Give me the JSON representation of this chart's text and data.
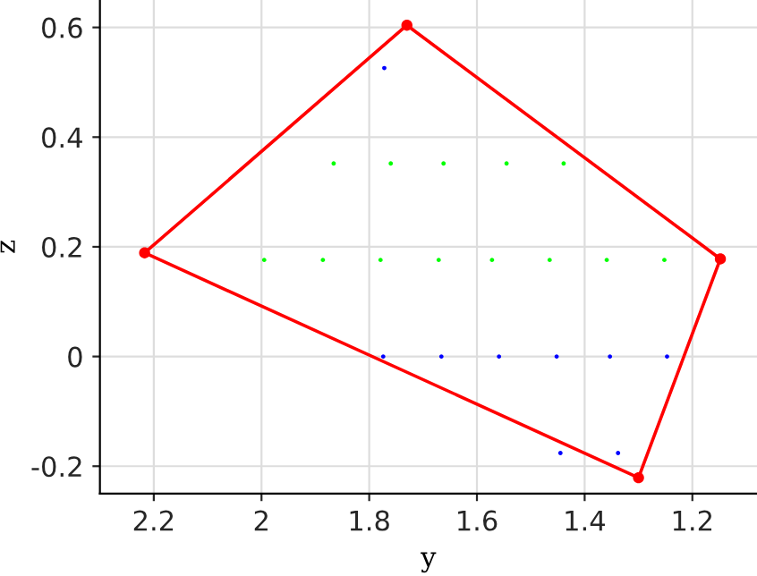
{
  "chart_data": {
    "type": "line",
    "xlabel": "y",
    "ylabel": "z",
    "xlim": [
      2.3,
      1.08
    ],
    "ylim": [
      -0.25,
      0.65
    ],
    "xticks": [
      {
        "value": 2.2,
        "label": "2.2"
      },
      {
        "value": 2.0,
        "label": "2"
      },
      {
        "value": 1.8,
        "label": "1.8"
      },
      {
        "value": 1.6,
        "label": "1.6"
      },
      {
        "value": 1.4,
        "label": "1.4"
      },
      {
        "value": 1.2,
        "label": "1.2"
      }
    ],
    "yticks": [
      {
        "value": -0.2,
        "label": "-0.2"
      },
      0,
      0.2,
      0.4,
      0.6
    ],
    "grid": true,
    "legend": false,
    "series": [
      {
        "color": "#ff0000",
        "line_style": "solid",
        "x": [
          1.148,
          1.73
        ],
        "values": [
          0.178,
          0.604
        ]
      },
      {
        "color": "#ff0000",
        "line_style": "solid",
        "x": [
          1.148,
          1.3
        ],
        "values": [
          0.178,
          -0.221
        ]
      },
      {
        "color": "#ff0000",
        "line_style": "solid",
        "x": [
          1.3,
          2.217
        ],
        "values": [
          -0.221,
          0.189
        ]
      },
      {
        "color": "#ff0000",
        "line_style": "solid",
        "x": [
          1.73,
          2.217
        ],
        "values": [
          0.604,
          0.189
        ]
      },
      {
        "type": "scatter",
        "color": "#ff0000",
        "marker": "circle",
        "x": [
          1.73,
          1.148,
          1.3,
          2.217
        ],
        "values": [
          0.604,
          0.178,
          -0.221,
          0.189
        ]
      },
      {
        "type": "scatter",
        "color": "#00ff00",
        "marker": "circle",
        "x": [
          1.866,
          1.76,
          1.662,
          1.545,
          1.439,
          1.995,
          1.886,
          1.779,
          1.671,
          1.572,
          1.465,
          1.359,
          1.252
        ],
        "values": [
          0.352,
          0.352,
          0.352,
          0.352,
          0.352,
          0.176,
          0.176,
          0.176,
          0.176,
          0.176,
          0.176,
          0.176,
          0.176
        ]
      },
      {
        "type": "scatter",
        "color": "#0000ff",
        "marker": "circle",
        "x": [
          1.772,
          1.774,
          1.666,
          1.559,
          1.452,
          1.353,
          1.247,
          1.445,
          1.338
        ],
        "values": [
          0.526,
          0,
          0,
          0,
          0,
          0,
          0,
          -0.176,
          -0.176
        ]
      }
    ]
  }
}
